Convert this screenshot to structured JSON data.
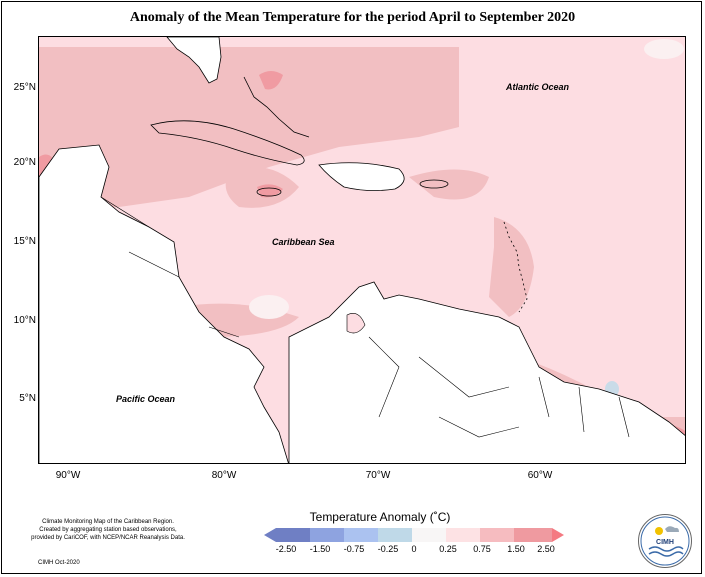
{
  "title": "Anomaly of the Mean Temperature for the period April to September 2020",
  "lat_labels": [
    "25°N",
    "20°N",
    "15°N",
    "10°N",
    "5°N"
  ],
  "lon_labels": [
    "90°W",
    "80°W",
    "70°W",
    "60°W"
  ],
  "ocean_labels": {
    "atlantic": "Atlantic Ocean",
    "caribbean": "Caribbean Sea",
    "pacific": "Pacific Ocean"
  },
  "legend": {
    "title": "Temperature Anomaly (˚C)",
    "ticks": [
      "-2.50",
      "-1.50",
      "-0.75",
      "-0.25",
      "0",
      "0.25",
      "0.75",
      "1.50",
      "2.50"
    ],
    "colors": [
      "#6f7fc4",
      "#8ea3e0",
      "#abc2f0",
      "#bfd9e8",
      "#f8f6f6",
      "#fde2e4",
      "#f6bcc0",
      "#ef9aa0",
      "#f47a82"
    ]
  },
  "credits": {
    "line1": "Climate Monitoring Map of the Caribbean Region.",
    "line2": "Created by aggregating station based observations,",
    "line3": "provided by CariCOF, with NCEP/NCAR Reanalysis Data.",
    "date": "CIMH Oct-2020"
  },
  "logo": {
    "text": "CIMH",
    "icon": "cimh-logo-icon"
  }
}
